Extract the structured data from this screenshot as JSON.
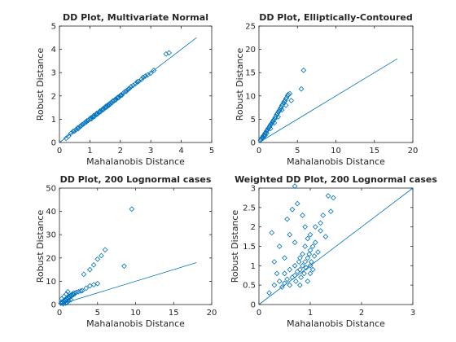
{
  "figure": {
    "background": "#ffffff",
    "series_color": "#0072bd",
    "axis_color": "#262626"
  },
  "chart_data": [
    {
      "type": "scatter",
      "title": "DD Plot, Multivariate Normal",
      "xlabel": "Mahalanobis Distance",
      "ylabel": "Robust Distance",
      "xlim": [
        0,
        5
      ],
      "ylim": [
        0,
        5
      ],
      "xticks": [
        "0",
        "1",
        "2",
        "3",
        "4",
        "5"
      ],
      "yticks": [
        "0",
        "1",
        "2",
        "3",
        "4",
        "5"
      ],
      "reference_line": {
        "x": [
          0,
          4.5
        ],
        "y": [
          0,
          4.5
        ]
      },
      "points": [
        [
          0.22,
          0.18
        ],
        [
          0.3,
          0.27
        ],
        [
          0.38,
          0.4
        ],
        [
          0.45,
          0.48
        ],
        [
          0.5,
          0.5
        ],
        [
          0.55,
          0.56
        ],
        [
          0.6,
          0.63
        ],
        [
          0.62,
          0.6
        ],
        [
          0.68,
          0.7
        ],
        [
          0.72,
          0.72
        ],
        [
          0.75,
          0.78
        ],
        [
          0.8,
          0.8
        ],
        [
          0.83,
          0.85
        ],
        [
          0.88,
          0.88
        ],
        [
          0.9,
          0.93
        ],
        [
          0.95,
          0.95
        ],
        [
          1.0,
          1.0
        ],
        [
          1.02,
          1.05
        ],
        [
          1.05,
          1.02
        ],
        [
          1.1,
          1.1
        ],
        [
          1.12,
          1.15
        ],
        [
          1.15,
          1.12
        ],
        [
          1.2,
          1.2
        ],
        [
          1.22,
          1.25
        ],
        [
          1.25,
          1.22
        ],
        [
          1.3,
          1.3
        ],
        [
          1.33,
          1.35
        ],
        [
          1.35,
          1.32
        ],
        [
          1.4,
          1.4
        ],
        [
          1.43,
          1.45
        ],
        [
          1.45,
          1.42
        ],
        [
          1.5,
          1.5
        ],
        [
          1.52,
          1.55
        ],
        [
          1.55,
          1.52
        ],
        [
          1.58,
          1.6
        ],
        [
          1.6,
          1.58
        ],
        [
          1.63,
          1.65
        ],
        [
          1.65,
          1.62
        ],
        [
          1.7,
          1.72
        ],
        [
          1.72,
          1.7
        ],
        [
          1.75,
          1.78
        ],
        [
          1.8,
          1.8
        ],
        [
          1.83,
          1.85
        ],
        [
          1.85,
          1.83
        ],
        [
          1.9,
          1.92
        ],
        [
          1.93,
          1.95
        ],
        [
          1.95,
          1.93
        ],
        [
          2.0,
          2.02
        ],
        [
          2.03,
          2.05
        ],
        [
          2.05,
          2.03
        ],
        [
          2.1,
          2.12
        ],
        [
          2.15,
          2.18
        ],
        [
          2.2,
          2.2
        ],
        [
          2.25,
          2.28
        ],
        [
          2.3,
          2.32
        ],
        [
          2.35,
          2.4
        ],
        [
          2.42,
          2.45
        ],
        [
          2.5,
          2.52
        ],
        [
          2.55,
          2.6
        ],
        [
          2.6,
          2.62
        ],
        [
          2.7,
          2.72
        ],
        [
          2.75,
          2.8
        ],
        [
          2.82,
          2.85
        ],
        [
          2.9,
          2.9
        ],
        [
          3.0,
          2.98
        ],
        [
          3.1,
          3.1
        ],
        [
          3.5,
          3.8
        ],
        [
          3.6,
          3.85
        ]
      ]
    },
    {
      "type": "scatter",
      "title": "DD Plot, Elliptically-Contoured",
      "xlabel": "Mahalanobis Distance",
      "ylabel": "Robust Distance",
      "xlim": [
        0,
        20
      ],
      "ylim": [
        0,
        25
      ],
      "xticks": [
        "0",
        "5",
        "10",
        "15",
        "20"
      ],
      "yticks": [
        "0",
        "5",
        "10",
        "15",
        "20",
        "25"
      ],
      "reference_line": {
        "x": [
          0,
          18
        ],
        "y": [
          0,
          18
        ]
      },
      "points": [
        [
          0.2,
          0.5
        ],
        [
          0.3,
          0.8
        ],
        [
          0.4,
          1.0
        ],
        [
          0.5,
          1.2
        ],
        [
          0.6,
          1.5
        ],
        [
          0.7,
          1.6
        ],
        [
          0.8,
          2.0
        ],
        [
          0.9,
          2.2
        ],
        [
          1.0,
          2.5
        ],
        [
          1.1,
          2.7
        ],
        [
          1.2,
          3.0
        ],
        [
          1.3,
          3.2
        ],
        [
          1.4,
          3.5
        ],
        [
          1.5,
          3.8
        ],
        [
          1.6,
          4.0
        ],
        [
          1.7,
          4.2
        ],
        [
          1.8,
          4.5
        ],
        [
          1.9,
          4.8
        ],
        [
          2.0,
          5.0
        ],
        [
          2.1,
          5.3
        ],
        [
          2.2,
          5.6
        ],
        [
          2.3,
          6.0
        ],
        [
          2.4,
          6.2
        ],
        [
          2.5,
          6.5
        ],
        [
          2.6,
          6.8
        ],
        [
          2.7,
          7.0
        ],
        [
          2.8,
          7.3
        ],
        [
          2.9,
          7.6
        ],
        [
          3.0,
          8.0
        ],
        [
          3.1,
          8.2
        ],
        [
          3.2,
          8.5
        ],
        [
          3.3,
          8.8
        ],
        [
          3.4,
          9.0
        ],
        [
          3.5,
          9.4
        ],
        [
          3.6,
          9.6
        ],
        [
          3.7,
          10.0
        ],
        [
          3.8,
          10.3
        ],
        [
          4.0,
          10.5
        ],
        [
          3.5,
          8.0
        ],
        [
          3.0,
          7.0
        ],
        [
          2.5,
          5.5
        ],
        [
          2.0,
          4.2
        ],
        [
          1.5,
          3.0
        ],
        [
          1.0,
          2.0
        ],
        [
          0.8,
          1.5
        ],
        [
          0.5,
          0.9
        ],
        [
          4.2,
          9.0
        ],
        [
          5.5,
          11.5
        ],
        [
          5.8,
          15.5
        ]
      ]
    },
    {
      "type": "scatter",
      "title": "DD Plot, 200 Lognormal cases",
      "xlabel": "Mahalanobis Distance",
      "ylabel": "Robust Distance",
      "xlim": [
        0,
        20
      ],
      "ylim": [
        0,
        50
      ],
      "xticks": [
        "0",
        "5",
        "10",
        "15",
        "20"
      ],
      "yticks": [
        "0",
        "10",
        "20",
        "30",
        "40",
        "50"
      ],
      "reference_line": {
        "x": [
          0,
          18
        ],
        "y": [
          0,
          18
        ]
      },
      "points": [
        [
          0.2,
          0.5
        ],
        [
          0.3,
          1.0
        ],
        [
          0.4,
          0.8
        ],
        [
          0.5,
          1.5
        ],
        [
          0.6,
          1.2
        ],
        [
          0.7,
          2.0
        ],
        [
          0.8,
          1.8
        ],
        [
          0.9,
          2.5
        ],
        [
          1.0,
          2.2
        ],
        [
          1.1,
          3.0
        ],
        [
          1.2,
          2.8
        ],
        [
          1.3,
          3.5
        ],
        [
          1.4,
          3.2
        ],
        [
          1.5,
          4.0
        ],
        [
          1.6,
          3.8
        ],
        [
          1.7,
          4.5
        ],
        [
          1.8,
          4.2
        ],
        [
          1.9,
          5.0
        ],
        [
          2.0,
          4.6
        ],
        [
          2.2,
          5.2
        ],
        [
          2.5,
          5.5
        ],
        [
          2.8,
          5.8
        ],
        [
          3.0,
          6.0
        ],
        [
          0.5,
          0.3
        ],
        [
          0.8,
          0.6
        ],
        [
          1.0,
          0.9
        ],
        [
          1.2,
          1.5
        ],
        [
          1.5,
          2.0
        ],
        [
          0.3,
          2.5
        ],
        [
          0.6,
          3.5
        ],
        [
          0.9,
          4.5
        ],
        [
          1.1,
          5.5
        ],
        [
          3.5,
          7.0
        ],
        [
          4.0,
          8.0
        ],
        [
          4.5,
          8.5
        ],
        [
          5.0,
          9.0
        ],
        [
          3.2,
          13.0
        ],
        [
          4.0,
          15.0
        ],
        [
          4.5,
          17.0
        ],
        [
          5.0,
          19.5
        ],
        [
          5.5,
          21.0
        ],
        [
          6.0,
          23.5
        ],
        [
          8.5,
          16.5
        ],
        [
          9.5,
          41.0
        ]
      ]
    },
    {
      "type": "scatter",
      "title": "Weighted DD Plot, 200 Lognormal cases",
      "xlabel": "Mahalanobis Distance",
      "ylabel": "Robust Distance",
      "xlim": [
        0,
        3
      ],
      "ylim": [
        0,
        3
      ],
      "xticks": [
        "0",
        "1",
        "2",
        "3"
      ],
      "yticks": [
        "0",
        "0.5",
        "1",
        "1.5",
        "2",
        "2.5",
        "3"
      ],
      "reference_line": {
        "x": [
          0,
          3
        ],
        "y": [
          0,
          3
        ]
      },
      "points": [
        [
          0.2,
          0.3
        ],
        [
          0.3,
          0.5
        ],
        [
          0.4,
          0.6
        ],
        [
          0.45,
          0.45
        ],
        [
          0.5,
          0.55
        ],
        [
          0.5,
          0.8
        ],
        [
          0.55,
          0.65
        ],
        [
          0.6,
          0.5
        ],
        [
          0.6,
          0.9
        ],
        [
          0.65,
          0.7
        ],
        [
          0.7,
          0.75
        ],
        [
          0.7,
          1.0
        ],
        [
          0.72,
          0.6
        ],
        [
          0.75,
          0.85
        ],
        [
          0.78,
          1.1
        ],
        [
          0.8,
          0.9
        ],
        [
          0.8,
          1.2
        ],
        [
          0.82,
          0.7
        ],
        [
          0.85,
          1.0
        ],
        [
          0.85,
          1.3
        ],
        [
          0.88,
          0.8
        ],
        [
          0.9,
          1.1
        ],
        [
          0.9,
          1.5
        ],
        [
          0.92,
          0.95
        ],
        [
          0.95,
          1.2
        ],
        [
          0.95,
          1.7
        ],
        [
          0.98,
          1.3
        ],
        [
          1.0,
          1.0
        ],
        [
          1.0,
          1.4
        ],
        [
          1.0,
          1.8
        ],
        [
          1.02,
          1.1
        ],
        [
          1.05,
          1.5
        ],
        [
          1.08,
          1.25
        ],
        [
          1.1,
          1.6
        ],
        [
          1.1,
          2.0
        ],
        [
          1.15,
          1.35
        ],
        [
          1.2,
          1.9
        ],
        [
          1.25,
          2.3
        ],
        [
          1.3,
          1.75
        ],
        [
          1.35,
          2.8
        ],
        [
          1.4,
          2.4
        ],
        [
          1.45,
          2.75
        ],
        [
          1.2,
          2.1
        ],
        [
          0.9,
          2.0
        ],
        [
          0.85,
          2.3
        ],
        [
          0.65,
          2.45
        ],
        [
          0.55,
          2.2
        ],
        [
          0.4,
          1.5
        ],
        [
          0.3,
          1.1
        ],
        [
          0.7,
          1.6
        ],
        [
          0.6,
          1.8
        ],
        [
          0.75,
          2.6
        ],
        [
          0.7,
          3.05
        ],
        [
          0.5,
          1.2
        ],
        [
          0.35,
          0.8
        ],
        [
          0.95,
          0.6
        ],
        [
          1.0,
          0.8
        ],
        [
          1.05,
          0.9
        ],
        [
          0.8,
          0.5
        ],
        [
          0.25,
          1.85
        ]
      ]
    }
  ]
}
